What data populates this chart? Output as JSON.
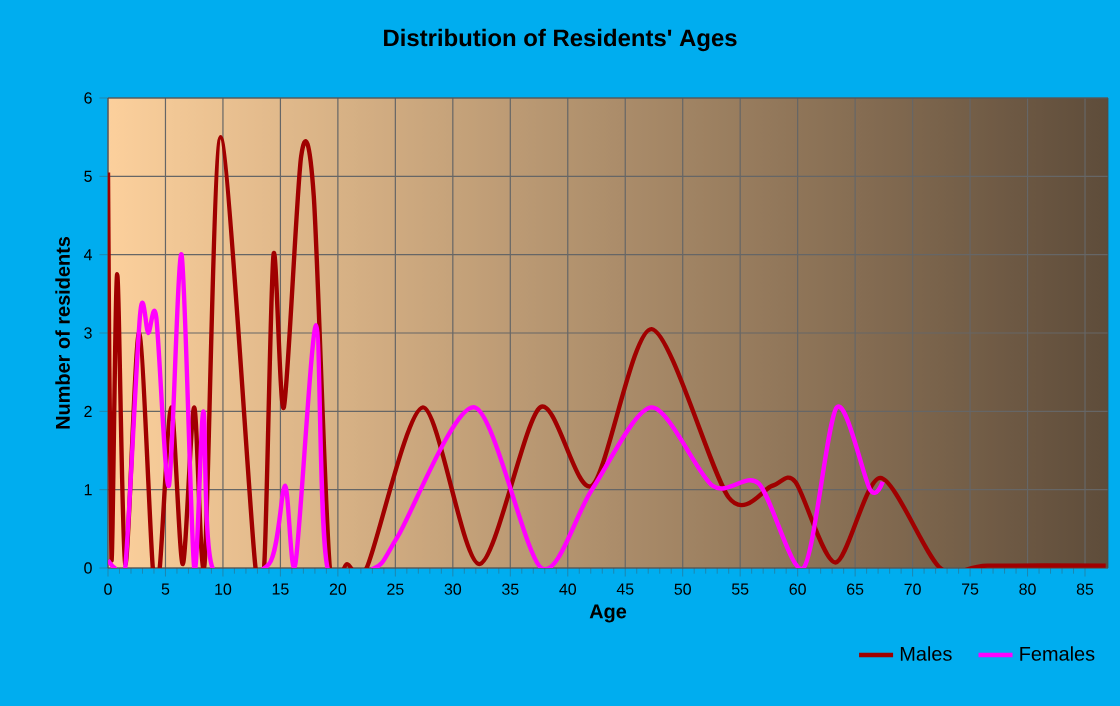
{
  "chart_data": {
    "type": "line",
    "title": "Distribution of Residents' Ages",
    "xlabel": "Age",
    "ylabel": "Number of residents",
    "xlim": [
      0,
      87
    ],
    "xticks": [
      0,
      5,
      10,
      15,
      20,
      25,
      30,
      35,
      40,
      45,
      50,
      55,
      60,
      65,
      70,
      75,
      80,
      85
    ],
    "ylim": [
      0,
      6
    ],
    "yticks": [
      0,
      1,
      2,
      3,
      4,
      5,
      6
    ],
    "grid": true,
    "legend": "bottom right",
    "marker": "none",
    "line_style": "solid",
    "series": [
      {
        "name": "Males",
        "color": "#a00000",
        "x": [
          0,
          0.3,
          0.8,
          1.5,
          2.7,
          3.9,
          4.5,
          5.5,
          6.5,
          7.5,
          8.4,
          9.8,
          12.8,
          13.6,
          14.4,
          15.3,
          16.8,
          17.9,
          19.3,
          20.8,
          22.5,
          27.4,
          32.3,
          37.6,
          42.1,
          47.3,
          54.0,
          57.8,
          59.8,
          63.3,
          67.2,
          72.4,
          76.5,
          86.8
        ],
        "values": [
          5.05,
          0.1,
          3.75,
          0.05,
          3.0,
          0.0,
          0.0,
          2.05,
          0.05,
          2.05,
          0.05,
          5.5,
          0.05,
          0.05,
          4.0,
          2.05,
          5.25,
          4.75,
          0.0,
          0.05,
          0.0,
          2.05,
          0.05,
          2.05,
          1.05,
          3.05,
          0.9,
          1.05,
          1.1,
          0.07,
          1.15,
          0.0,
          0.03,
          0.03
        ]
      },
      {
        "name": "Females",
        "color": "#ff00ff",
        "x": [
          0,
          0.6,
          1.5,
          2.8,
          3.5,
          4.2,
          5.3,
          6.4,
          7.5,
          8.3,
          9.1,
          14.0,
          15.4,
          16.3,
          18.1,
          19.1,
          23.2,
          25.2,
          31.9,
          37.7,
          42.1,
          47.3,
          52.6,
          56.6,
          60.5,
          63.4,
          66.3,
          67.4
        ],
        "values": [
          0.1,
          0.0,
          0.0,
          3.25,
          3.0,
          3.2,
          1.05,
          4.0,
          0.0,
          2.0,
          0.0,
          0.05,
          1.05,
          0.05,
          3.1,
          0.0,
          0.0,
          0.4,
          2.05,
          0.0,
          1.0,
          2.05,
          1.05,
          1.08,
          0.0,
          2.05,
          1.0,
          1.1
        ]
      }
    ]
  }
}
